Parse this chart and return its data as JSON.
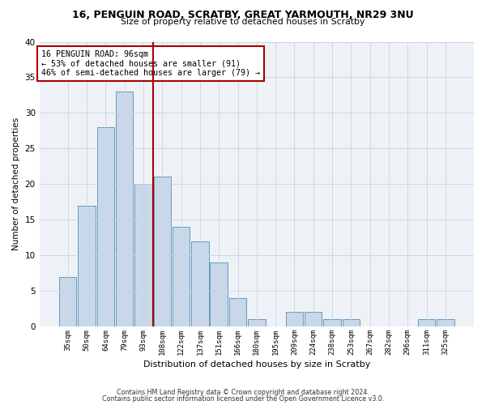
{
  "title1": "16, PENGUIN ROAD, SCRATBY, GREAT YARMOUTH, NR29 3NU",
  "title2": "Size of property relative to detached houses in Scratby",
  "xlabel": "Distribution of detached houses by size in Scratby",
  "ylabel": "Number of detached properties",
  "categories": [
    "35sqm",
    "50sqm",
    "64sqm",
    "79sqm",
    "93sqm",
    "108sqm",
    "122sqm",
    "137sqm",
    "151sqm",
    "166sqm",
    "180sqm",
    "195sqm",
    "209sqm",
    "224sqm",
    "238sqm",
    "253sqm",
    "267sqm",
    "282sqm",
    "296sqm",
    "311sqm",
    "325sqm"
  ],
  "values": [
    7,
    17,
    28,
    33,
    20,
    21,
    14,
    12,
    9,
    4,
    1,
    0,
    2,
    2,
    1,
    1,
    0,
    0,
    0,
    1,
    1
  ],
  "bar_color": "#c8d8ea",
  "bar_edge_color": "#6699bb",
  "vline_color": "#aa0000",
  "vline_bin_index": 4,
  "annotation_text": "16 PENGUIN ROAD: 96sqm\n← 53% of detached houses are smaller (91)\n46% of semi-detached houses are larger (79) →",
  "annotation_box_color": "#ffffff",
  "annotation_box_edge_color": "#aa0000",
  "footer1": "Contains HM Land Registry data © Crown copyright and database right 2024.",
  "footer2": "Contains public sector information licensed under the Open Government Licence v3.0.",
  "bg_color": "#eef2f7",
  "ylim": [
    0,
    40
  ],
  "yticks": [
    0,
    5,
    10,
    15,
    20,
    25,
    30,
    35,
    40
  ]
}
